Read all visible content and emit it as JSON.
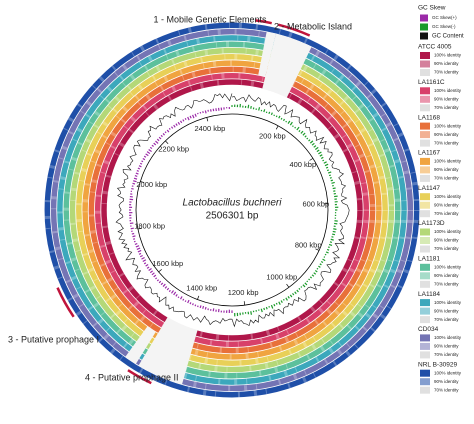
{
  "annotations": [
    "1 - Mobile Genetic Elements",
    "2 - Metabolic Island",
    "3 - Putative prophage I",
    "4 - Putative prophage II"
  ],
  "center": {
    "organism": "Lactobacillus buchneri",
    "length": "2506301 bp"
  },
  "ticks": [
    "200 kbp",
    "400 kbp",
    "600 kbp",
    "800 kbp",
    "1000 kbp",
    "1200 kbp",
    "1400 kbp",
    "1600 kbp",
    "1800 kbp",
    "2000 kbp",
    "2200 kbp",
    "2400 kbp"
  ],
  "legend": {
    "gc_skew": {
      "title": "GC Skew",
      "items": [
        {
          "label": "GC Skew(+)",
          "color": "#9b2aa8"
        },
        {
          "label": "GC Skew(-)",
          "color": "#1a9a2a"
        }
      ]
    },
    "gc_content": {
      "label": "GC Content",
      "color": "#111111"
    },
    "genomes": [
      {
        "name": "ATCC 4005",
        "color": "#b0174a",
        "levels": [
          "100% identity",
          "90% identity",
          "70% identity"
        ]
      },
      {
        "name": "LA1161C",
        "color": "#d8406a",
        "levels": [
          "100% identity",
          "90% identity",
          "70% identity"
        ]
      },
      {
        "name": "LA1168",
        "color": "#e8703a",
        "levels": [
          "100% identity",
          "90% identity",
          "70% identity"
        ]
      },
      {
        "name": "LA1167",
        "color": "#f0a440",
        "levels": [
          "100% identity",
          "90% identity",
          "70% identity"
        ]
      },
      {
        "name": "LA1147",
        "color": "#e8d058",
        "levels": [
          "100% identity",
          "90% identity",
          "70% identity"
        ]
      },
      {
        "name": "LA1173D",
        "color": "#b4d878",
        "levels": [
          "100% identity",
          "90% identity",
          "70% identity"
        ]
      },
      {
        "name": "LA1181",
        "color": "#5cc09c",
        "levels": [
          "100% identity",
          "90% identity",
          "70% identity"
        ]
      },
      {
        "name": "LA1184",
        "color": "#3ca8bc",
        "levels": [
          "100% identity",
          "90% identity",
          "70% identity"
        ]
      },
      {
        "name": "CD034",
        "color": "#7474b4",
        "levels": [
          "100% identity",
          "90% identity",
          "70% identity"
        ]
      },
      {
        "name": "NRL B-30929",
        "color": "#1f4fa8",
        "levels": [
          "100% identity",
          "90% identity",
          "70% identity"
        ]
      }
    ]
  }
}
